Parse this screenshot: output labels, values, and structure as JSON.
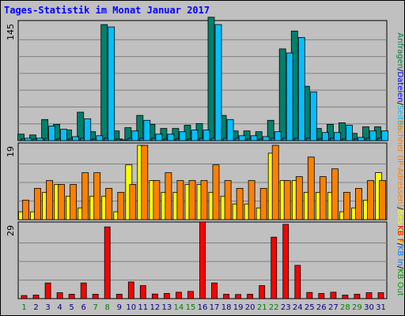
{
  "chart_data": {
    "type": "bar",
    "title": "Tages-Statistik im Monat Januar 2017",
    "categories": [
      "1",
      "2",
      "3",
      "4",
      "5",
      "6",
      "7",
      "8",
      "9",
      "10",
      "11",
      "12",
      "13",
      "14",
      "15",
      "16",
      "17",
      "18",
      "19",
      "20",
      "21",
      "22",
      "23",
      "24",
      "25",
      "26",
      "27",
      "28",
      "29",
      "30",
      "31"
    ],
    "weekend_categories": [
      "1",
      "7",
      "8",
      "14",
      "15",
      "21",
      "22",
      "28",
      "29"
    ],
    "category_colors": {
      "weekday": "#000080",
      "weekend": "#008000"
    },
    "panels": [
      {
        "id": "top",
        "ylim": [
          0,
          145
        ],
        "ytick_label": "145",
        "legend": [
          {
            "text": "Anfragen",
            "color": "#008040"
          },
          {
            "text": "/",
            "color": "#000000"
          },
          {
            "text": "Dateien",
            "color": "#0000ff"
          },
          {
            "text": "/",
            "color": "#000000"
          },
          {
            "text": "Seiten",
            "color": "#00c0ff"
          }
        ],
        "series": [
          {
            "name": "Anfragen",
            "color": "#00806a",
            "values": [
              8,
              7,
              26,
              20,
              13,
              35,
              11,
              143,
              12,
              16,
              31,
              20,
              15,
              15,
              19,
              21,
              152,
              31,
              12,
              12,
              11,
              25,
              113,
              135,
              67,
              15,
              20,
              22,
              9,
              17,
              17
            ]
          },
          {
            "name": "Dateien",
            "color": "#0080c0",
            "values": [
              2,
              2,
              3,
              2,
              2,
              3,
              2,
              3,
              2,
              3,
              3,
              3,
              2,
              2,
              2,
              3,
              3,
              3,
              3,
              2,
              2,
              3,
              3,
              3,
              3,
              2,
              3,
              2,
              2,
              3,
              3
            ]
          },
          {
            "name": "Seiten",
            "color": "#00c0ff",
            "values": [
              3,
              3,
              18,
              14,
              5,
              27,
              6,
              140,
              1,
              12,
              25,
              8,
              8,
              11,
              13,
              13,
              143,
              26,
              6,
              6,
              5,
              11,
              108,
              127,
              60,
              10,
              10,
              19,
              4,
              12,
              12
            ]
          }
        ]
      },
      {
        "id": "middle",
        "ylim": [
          0,
          19
        ],
        "ytick_label": "19",
        "legend": [
          {
            "text": "Rechner (IP-Adressen)",
            "color": "#ff8000"
          },
          {
            "text": "/",
            "color": "#000000"
          },
          {
            "text": "Besuche",
            "color": "#ffff00"
          }
        ],
        "series": [
          {
            "name": "Besuche",
            "color": "#ffff00",
            "values": [
              2,
              2,
              7,
              9,
              6,
              3,
              6,
              6,
              2,
              14,
              19,
              10,
              7,
              7,
              9,
              9,
              7,
              6,
              4,
              4,
              3,
              17,
              10,
              10,
              7,
              7,
              7,
              2,
              3,
              5,
              12
            ]
          },
          {
            "name": "Rechner (IP-Adressen)",
            "color": "#ff8000",
            "values": [
              5,
              8,
              10,
              9,
              9,
              12,
              12,
              8,
              7,
              9,
              19,
              10,
              12,
              10,
              10,
              10,
              14,
              10,
              8,
              10,
              8,
              19,
              10,
              11,
              16,
              11,
              13,
              7,
              8,
              10,
              10
            ]
          }
        ]
      },
      {
        "id": "bottom",
        "ylim": [
          0,
          29
        ],
        "ytick_label": "29",
        "legend": [
          {
            "text": "KB F",
            "color": "#ff0000"
          },
          {
            "text": "/",
            "color": "#000000"
          },
          {
            "text": "KB In",
            "color": "#0080ff"
          },
          {
            "text": "/",
            "color": "#000000"
          },
          {
            "text": "KB Out",
            "color": "#00a000"
          }
        ],
        "series": [
          {
            "name": "KB F",
            "color": "#ff0000",
            "values": [
              1.2,
              1.4,
              6.1,
              2.3,
              1.7,
              6.1,
              1.7,
              28,
              1.7,
              6.5,
              5.1,
              1.8,
              2.0,
              2.5,
              2.8,
              30,
              6.1,
              1.7,
              1.6,
              1.7,
              5.1,
              24,
              29,
              13,
              2.4,
              2.0,
              2.5,
              1.4,
              1.7,
              2.3,
              2.3
            ]
          }
        ]
      }
    ]
  }
}
